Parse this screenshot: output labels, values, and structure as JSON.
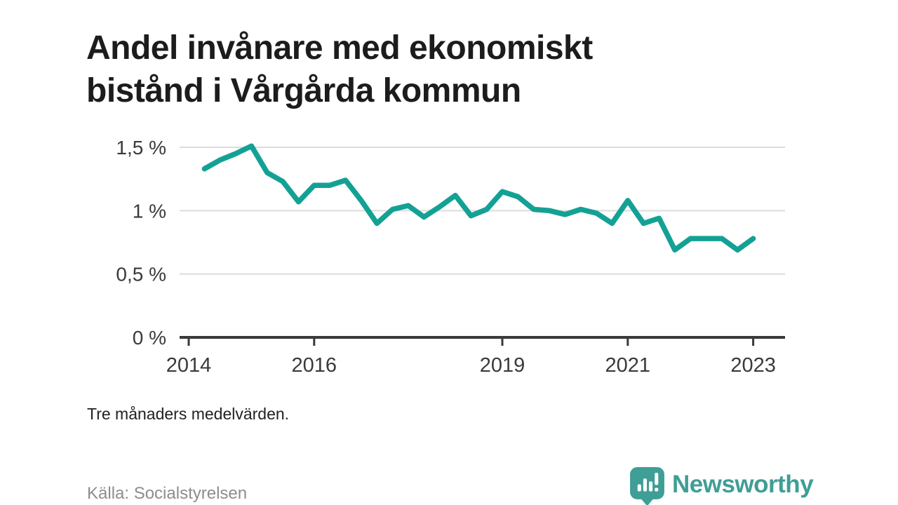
{
  "title": {
    "full": "Andel invånare med ekonomiskt bistånd i Vårgårda kommun",
    "line1": "Andel invånare med ekonomiskt",
    "line2": "bistånd i Vårgårda kommun"
  },
  "note": "Tre månaders medelvärden.",
  "source": "Källa: Socialstyrelsen",
  "branding": {
    "wordmark": "Newsworthy",
    "icon": "newsworthy-speech-bubble-barchart-icon",
    "color": "#3f9e96"
  },
  "colors": {
    "background": "#ffffff",
    "line": "#14a195",
    "grid": "#dcdcdc",
    "axis": "#3a3a3a",
    "title_text": "#1c1c1c",
    "tick_text": "#3a3a3a",
    "note_text": "#222222",
    "source_text": "#8d8d8d"
  },
  "chart_data": {
    "type": "line",
    "title": "Andel invånare med ekonomiskt bistånd i Vårgårda kommun",
    "subtitle": "Tre månaders medelvärden.",
    "source": "Källa: Socialstyrelsen",
    "xlabel": "",
    "ylabel": "",
    "unit": "%",
    "legend": "none",
    "grid": "horizontal",
    "xlim": [
      2013.88,
      2023.55
    ],
    "ylim": [
      0,
      1.6
    ],
    "x": [
      2014.25,
      2014.5,
      2014.75,
      2015.0,
      2015.25,
      2015.5,
      2015.75,
      2016.0,
      2016.25,
      2016.5,
      2016.75,
      2017.0,
      2017.25,
      2017.5,
      2017.75,
      2018.0,
      2018.25,
      2018.5,
      2018.75,
      2019.0,
      2019.25,
      2019.5,
      2019.75,
      2020.0,
      2020.25,
      2020.5,
      2020.75,
      2021.0,
      2021.25,
      2021.5,
      2021.75,
      2022.0,
      2022.25,
      2022.5,
      2022.75,
      2023.0
    ],
    "series": [
      {
        "name": "Andel invånare med ekonomiskt bistånd",
        "values": [
          1.33,
          1.4,
          1.45,
          1.51,
          1.3,
          1.23,
          1.07,
          1.2,
          1.2,
          1.24,
          1.08,
          0.9,
          1.01,
          1.04,
          0.95,
          1.03,
          1.12,
          0.96,
          1.01,
          1.15,
          1.11,
          1.01,
          1.0,
          0.97,
          1.01,
          0.98,
          0.9,
          1.08,
          0.9,
          0.94,
          0.69,
          0.78,
          0.78,
          0.78,
          0.69,
          0.78
        ]
      }
    ],
    "y_ticks": [
      {
        "value": 0,
        "label": "0 %"
      },
      {
        "value": 0.5,
        "label": "0,5 %"
      },
      {
        "value": 1.0,
        "label": "1 %"
      },
      {
        "value": 1.5,
        "label": "1,5 %"
      }
    ],
    "x_ticks": [
      {
        "value": 2014,
        "label": "2014"
      },
      {
        "value": 2016,
        "label": "2016"
      },
      {
        "value": 2019,
        "label": "2019"
      },
      {
        "value": 2021,
        "label": "2021"
      },
      {
        "value": 2023,
        "label": "2023"
      }
    ]
  }
}
